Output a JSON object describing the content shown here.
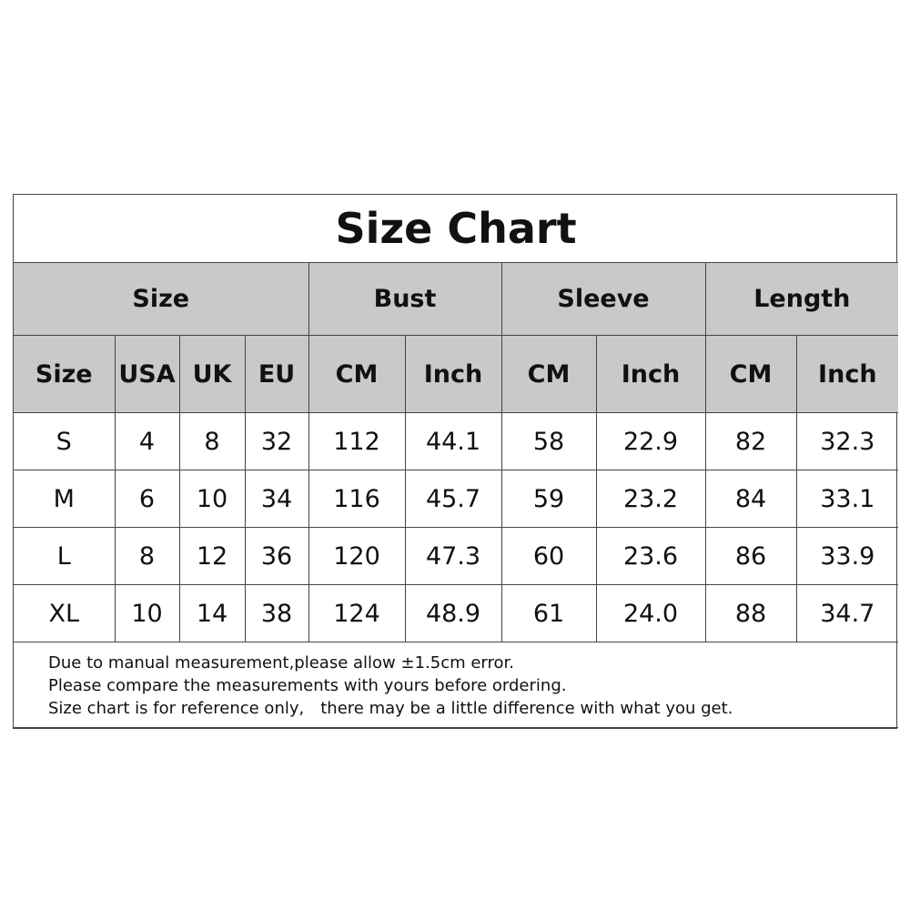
{
  "title": "Size Chart",
  "group_headers": [
    "Size",
    "Bust",
    "Sleeve",
    "Length"
  ],
  "sub_headers": [
    "Size",
    "USA",
    "UK",
    "EU",
    "CM",
    "Inch",
    "CM",
    "Inch",
    "CM",
    "Inch"
  ],
  "rows": [
    [
      "S",
      "4",
      "8",
      "32",
      "112",
      "44.1",
      "58",
      "22.9",
      "82",
      "32.3"
    ],
    [
      "M",
      "6",
      "10",
      "34",
      "116",
      "45.7",
      "59",
      "23.2",
      "84",
      "33.1"
    ],
    [
      "L",
      "8",
      "12",
      "36",
      "120",
      "47.3",
      "60",
      "23.6",
      "86",
      "33.9"
    ],
    [
      "XL",
      "10",
      "14",
      "38",
      "124",
      "48.9",
      "61",
      "24.0",
      "88",
      "34.7"
    ]
  ],
  "notes": [
    "Due to manual measurement,please allow ±1.5cm error.",
    "Please compare the measurements with yours before ordering.",
    "Size chart is for reference only,　there may be a little difference with what you get."
  ],
  "colors": {
    "header_bg": "#c9c9c9",
    "border": "#444444"
  }
}
